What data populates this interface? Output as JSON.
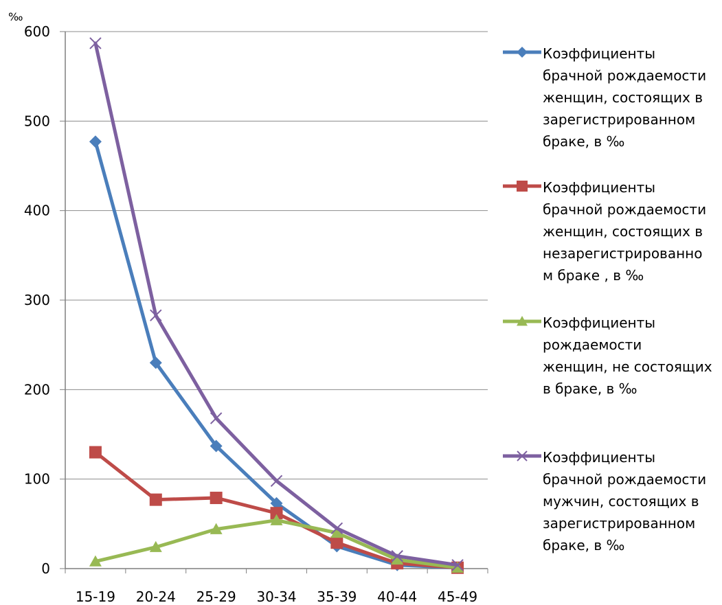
{
  "chart_data": {
    "type": "line",
    "unit_label": "‰",
    "categories": [
      "15-19",
      "20-24",
      "25-29",
      "30-34",
      "35-39",
      "40-44",
      "45-49"
    ],
    "ylim": [
      0,
      600
    ],
    "yticks": [
      "0",
      "100",
      "200",
      "300",
      "400",
      "500",
      "600"
    ],
    "grid": true,
    "legend_position": "right",
    "series": [
      {
        "name": "Коэффициенты\nбрачной рождаемости\nженщин, состоящих в\nзарегистрированном\nбраке, в ‰",
        "color": "#4a7ebb",
        "marker": "diamond",
        "values": [
          477,
          230,
          137,
          73,
          25,
          4,
          1
        ]
      },
      {
        "name": "Коэффициенты\nбрачной рождаемости\nженщин, состоящих в\nнезарегистрированно\nм браке , в ‰",
        "color": "#be4b48",
        "marker": "square",
        "values": [
          130,
          77,
          79,
          62,
          29,
          6,
          1
        ]
      },
      {
        "name": "Коэффициенты\nрождаемости\nженщин, не состоящих\nв браке, в ‰",
        "color": "#98b954",
        "marker": "triangle",
        "values": [
          8,
          24,
          44,
          54,
          40,
          10,
          1
        ]
      },
      {
        "name": "Коэффициенты\nбрачной рождаемости\nмужчин, состоящих в\nзарегистрированном\nбраке, в ‰",
        "color": "#7d60a0",
        "marker": "x",
        "values": [
          587,
          283,
          168,
          98,
          45,
          14,
          4
        ]
      }
    ]
  }
}
